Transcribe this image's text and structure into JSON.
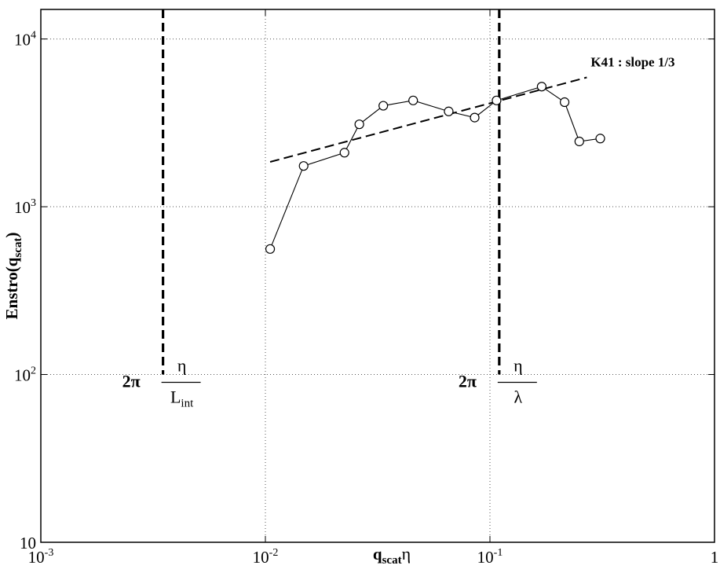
{
  "chart_data": {
    "type": "line",
    "title": "",
    "xlabel": "q_scat η",
    "xlabel_parts": {
      "q": "q",
      "sub": "scat",
      "eta": "η"
    },
    "ylabel": "Enstro(q_scat)",
    "ylabel_parts": {
      "main": "Enstro(q",
      "sub": "scat",
      "close": ")"
    },
    "x_scale": "log",
    "y_scale": "log",
    "xlim": [
      0.001,
      1
    ],
    "ylim": [
      10,
      15000
    ],
    "x_ticks": [
      0.001,
      0.01,
      0.1,
      1
    ],
    "x_tick_labels": [
      {
        "base": "10",
        "exp": "-3"
      },
      {
        "base": "10",
        "exp": "-2"
      },
      {
        "base": "10",
        "exp": "-1"
      },
      {
        "base": "1",
        "exp": ""
      }
    ],
    "y_ticks": [
      10,
      100,
      1000,
      10000
    ],
    "y_tick_labels": [
      {
        "base": "10",
        "exp": ""
      },
      {
        "base": "10",
        "exp": "2"
      },
      {
        "base": "10",
        "exp": "3"
      },
      {
        "base": "10",
        "exp": "4"
      }
    ],
    "grid": true,
    "series": [
      {
        "marker": "open-circle",
        "line": "solid",
        "x": [
          0.0105,
          0.0148,
          0.0225,
          0.0262,
          0.0335,
          0.0455,
          0.0655,
          0.0855,
          0.107,
          0.17,
          0.215,
          0.25,
          0.31
        ],
        "y": [
          560,
          1750,
          2100,
          3100,
          4000,
          4300,
          3700,
          3400,
          4300,
          5200,
          4200,
          2450,
          2550
        ]
      }
    ],
    "reference_line": {
      "label": "K41 : slope 1/3",
      "style": "dashed",
      "x": [
        0.0105,
        0.27
      ],
      "y": [
        1850,
        5900
      ]
    },
    "vertical_lines": [
      {
        "x": 0.0035,
        "style": "dashed",
        "label": {
          "prefix": "2π",
          "numerator": "η",
          "denominator": "L",
          "denominator_sub": "int"
        }
      },
      {
        "x": 0.11,
        "style": "dashed",
        "label": {
          "prefix": "2π",
          "numerator": "η",
          "denominator": "λ",
          "denominator_sub": ""
        }
      }
    ]
  }
}
